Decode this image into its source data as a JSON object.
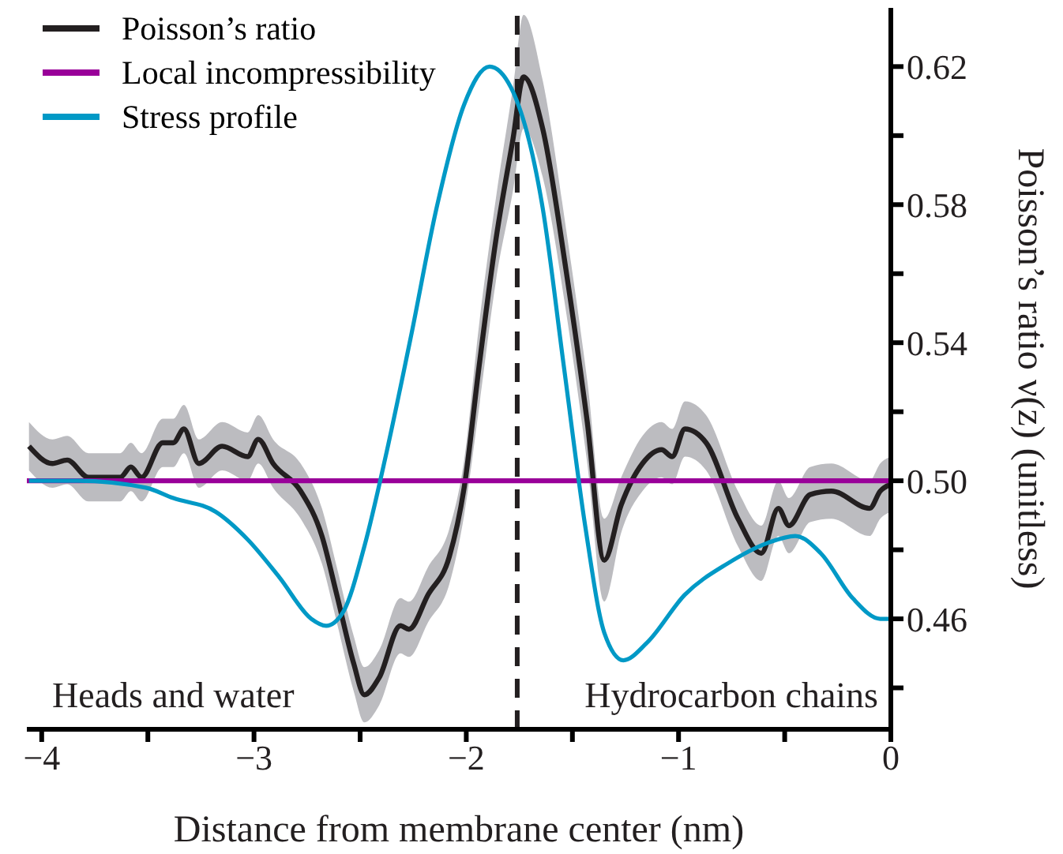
{
  "chart_data": {
    "type": "line",
    "xlabel": "Distance from membrane center (nm)",
    "ylabel": "Poisson’s ratio ν(z) (unitless)",
    "xlim": [
      -4.07,
      0
    ],
    "ylim": [
      0.428,
      0.637
    ],
    "xticks": [
      -4,
      {
        "value": -3.5,
        "label": null
      },
      -3,
      {
        "value": -2.5,
        "label": null
      },
      -2,
      {
        "value": -1.5,
        "label": null
      },
      -1,
      {
        "value": -0.5,
        "label": null
      },
      0
    ],
    "yticks": [
      {
        "value": 0.44,
        "label": null
      },
      0.46,
      {
        "value": 0.48,
        "label": null
      },
      {
        "value": 0.5,
        "label": "0.50"
      },
      {
        "value": 0.52,
        "label": null
      },
      0.54,
      {
        "value": 0.56,
        "label": null
      },
      0.58,
      {
        "value": 0.6,
        "label": null
      },
      0.62
    ],
    "grid": false,
    "legend": "top left",
    "marker": "none",
    "line_style": "solid",
    "ref_lines": [
      {
        "axis": "x",
        "value": -1.76,
        "color": "#231f20",
        "line_style": "dashed"
      }
    ],
    "annotations": [
      "Heads and water",
      "Hydrocarbon chains"
    ],
    "series": [
      {
        "name": "Poisson’s ratio",
        "color": "#231f20",
        "x": [
          -4.06,
          -3.95,
          -3.88,
          -3.78,
          -3.63,
          -3.58,
          -3.53,
          -3.43,
          -3.38,
          -3.33,
          -3.26,
          -3.15,
          -3.03,
          -2.98,
          -2.91,
          -2.78,
          -2.68,
          -2.61,
          -2.53,
          -2.48,
          -2.41,
          -2.31,
          -2.27,
          -2.18,
          -2.08,
          -2.01,
          -1.94,
          -1.86,
          -1.78,
          -1.73,
          -1.64,
          -1.53,
          -1.43,
          -1.35,
          -1.27,
          -1.17,
          -1.08,
          -1.03,
          -0.97,
          -0.87,
          -0.72,
          -0.61,
          -0.53,
          -0.48,
          -0.38,
          -0.28,
          -0.1,
          -0.05,
          0
        ],
        "values": [
          0.51,
          0.505,
          0.506,
          0.501,
          0.501,
          0.504,
          0.501,
          0.511,
          0.511,
          0.515,
          0.505,
          0.51,
          0.507,
          0.512,
          0.505,
          0.497,
          0.484,
          0.467,
          0.447,
          0.438,
          0.443,
          0.458,
          0.457,
          0.467,
          0.478,
          0.498,
          0.533,
          0.57,
          0.599,
          0.617,
          0.602,
          0.561,
          0.517,
          0.477,
          0.493,
          0.505,
          0.509,
          0.507,
          0.515,
          0.511,
          0.489,
          0.479,
          0.492,
          0.487,
          0.496,
          0.497,
          0.492,
          0.497,
          0.499
        ],
        "lower": [
          0.503,
          0.498,
          0.499,
          0.494,
          0.494,
          0.497,
          0.494,
          0.504,
          0.504,
          0.508,
          0.498,
          0.503,
          0.5,
          0.505,
          0.498,
          0.489,
          0.476,
          0.459,
          0.439,
          0.43,
          0.435,
          0.45,
          0.449,
          0.459,
          0.47,
          0.49,
          0.521,
          0.558,
          0.584,
          0.602,
          0.588,
          0.549,
          0.505,
          0.465,
          0.485,
          0.497,
          0.501,
          0.499,
          0.507,
          0.503,
          0.481,
          0.471,
          0.484,
          0.479,
          0.488,
          0.489,
          0.484,
          0.489,
          0.491
        ],
        "upper": [
          0.517,
          0.512,
          0.513,
          0.508,
          0.508,
          0.511,
          0.508,
          0.518,
          0.518,
          0.522,
          0.512,
          0.517,
          0.514,
          0.519,
          0.512,
          0.505,
          0.492,
          0.475,
          0.455,
          0.446,
          0.451,
          0.466,
          0.465,
          0.475,
          0.486,
          0.506,
          0.545,
          0.582,
          0.614,
          0.635,
          0.616,
          0.573,
          0.529,
          0.489,
          0.501,
          0.513,
          0.517,
          0.515,
          0.523,
          0.519,
          0.497,
          0.487,
          0.5,
          0.495,
          0.504,
          0.505,
          0.5,
          0.505,
          0.507
        ]
      },
      {
        "name": "Local incompressibility",
        "color": "#990099",
        "x": [
          -4.07,
          0
        ],
        "values": [
          0.5,
          0.5
        ]
      },
      {
        "name": "Stress profile",
        "color": "#0099c6",
        "x": [
          -4.06,
          -3.83,
          -3.51,
          -3.38,
          -3.18,
          -3.03,
          -2.88,
          -2.73,
          -2.66,
          -2.58,
          -2.48,
          -2.38,
          -2.26,
          -2.14,
          -2.01,
          -1.89,
          -1.79,
          -1.64,
          -1.54,
          -1.44,
          -1.35,
          -1.26,
          -1.15,
          -0.97,
          -0.77,
          -0.58,
          -0.45,
          -0.33,
          -0.18,
          -0.05,
          0
        ],
        "values": [
          0.5,
          0.5,
          0.498,
          0.495,
          0.491,
          0.483,
          0.472,
          0.46,
          0.458,
          0.462,
          0.481,
          0.507,
          0.542,
          0.579,
          0.609,
          0.62,
          0.614,
          0.579,
          0.533,
          0.487,
          0.456,
          0.448,
          0.453,
          0.467,
          0.476,
          0.482,
          0.484,
          0.479,
          0.466,
          0.46,
          0.46
        ]
      }
    ]
  }
}
